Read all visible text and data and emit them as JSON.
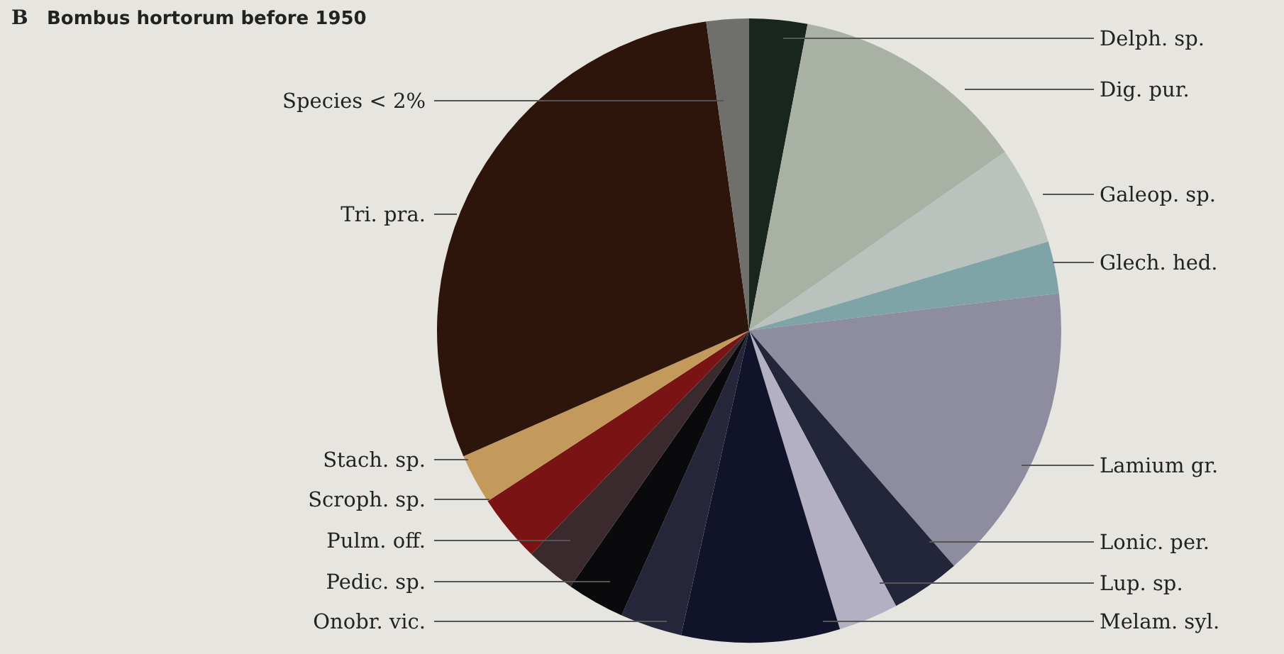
{
  "chart_data": {
    "type": "pie",
    "title": "Bombus hortorum before 1950",
    "annotations": [
      "B"
    ],
    "categories": [
      "Delph. sp.",
      "Dig. pur.",
      "Galeop. sp.",
      "Glech. hed.",
      "Lamium gr.",
      "Lonic. per.",
      "Lup. sp.",
      "Melam. syl.",
      "Onobr. vic.",
      "Pedic. sp.",
      "Pulm. off.",
      "Scroph. sp.",
      "Stach. sp.",
      "Tri. pra.",
      "Species < 2%"
    ],
    "values": [
      3.0,
      12.3,
      5.1,
      2.7,
      15.5,
      3.6,
      3.1,
      8.2,
      3.2,
      3.0,
      2.6,
      3.5,
      2.6,
      29.4,
      2.2
    ],
    "colors": [
      "#18261e",
      "#a9b0a4",
      "#b9c2bd",
      "#7fa4a8",
      "#8e8d9f",
      "#23263a",
      "#b3b0c4",
      "#10132a",
      "#25263a",
      "#0a090b",
      "#3a2a2d",
      "#7a1414",
      "#c49a5c",
      "#2e150c",
      "#6f706c"
    ]
  }
}
